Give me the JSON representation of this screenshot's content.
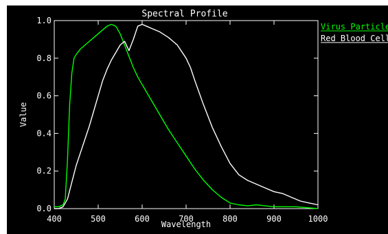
{
  "chart_data": {
    "type": "line",
    "title": "Spectral Profile",
    "xlabel": "Wavelength",
    "ylabel": "Value",
    "xlim": [
      400,
      1000
    ],
    "ylim": [
      0.0,
      1.0
    ],
    "x_ticks": [
      400,
      500,
      600,
      700,
      800,
      900,
      1000
    ],
    "y_ticks": [
      0.0,
      0.2,
      0.4,
      0.6,
      0.8,
      1.0
    ],
    "x_tick_labels": [
      "400",
      "500",
      "600",
      "700",
      "800",
      "900",
      "1000"
    ],
    "y_tick_labels": [
      "0.0",
      "0.2",
      "0.4",
      "0.6",
      "0.8",
      "1.0"
    ],
    "grid": false,
    "legend_position": "right-outside-top",
    "series": [
      {
        "name": "Virus Particle",
        "color": "#00ff00",
        "x": [
          400,
          410,
          420,
          425,
          430,
          435,
          440,
          445,
          450,
          460,
          470,
          480,
          490,
          500,
          510,
          520,
          530,
          540,
          550,
          560,
          570,
          580,
          590,
          600,
          620,
          640,
          660,
          680,
          700,
          720,
          740,
          760,
          780,
          800,
          820,
          840,
          860,
          880,
          900,
          950,
          1000
        ],
        "values": [
          0.01,
          0.01,
          0.02,
          0.05,
          0.25,
          0.55,
          0.72,
          0.8,
          0.82,
          0.85,
          0.87,
          0.89,
          0.91,
          0.93,
          0.95,
          0.97,
          0.98,
          0.97,
          0.93,
          0.87,
          0.81,
          0.75,
          0.7,
          0.66,
          0.58,
          0.5,
          0.42,
          0.35,
          0.28,
          0.21,
          0.15,
          0.1,
          0.06,
          0.03,
          0.02,
          0.015,
          0.02,
          0.015,
          0.01,
          0.01,
          0.0
        ]
      },
      {
        "name": "Red Blood Cell",
        "color": "#ffffff",
        "x": [
          400,
          410,
          420,
          430,
          440,
          450,
          460,
          470,
          480,
          490,
          500,
          510,
          520,
          530,
          540,
          550,
          560,
          570,
          580,
          590,
          600,
          610,
          620,
          640,
          660,
          680,
          700,
          710,
          720,
          740,
          760,
          780,
          800,
          820,
          840,
          860,
          880,
          900,
          920,
          940,
          960,
          980,
          1000
        ],
        "values": [
          0.0,
          0.0,
          0.01,
          0.05,
          0.14,
          0.23,
          0.3,
          0.37,
          0.44,
          0.52,
          0.6,
          0.68,
          0.74,
          0.79,
          0.83,
          0.87,
          0.89,
          0.84,
          0.9,
          0.97,
          0.98,
          0.97,
          0.96,
          0.94,
          0.91,
          0.87,
          0.8,
          0.75,
          0.68,
          0.55,
          0.43,
          0.33,
          0.24,
          0.18,
          0.15,
          0.13,
          0.11,
          0.09,
          0.08,
          0.06,
          0.04,
          0.03,
          0.02
        ]
      }
    ]
  }
}
